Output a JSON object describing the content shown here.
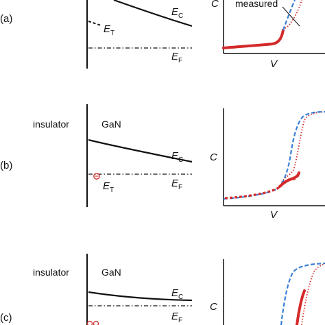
{
  "panels": [
    {
      "letter": "(a)",
      "material_left": "",
      "material_right": "",
      "band": {
        "ec": "E",
        "ec_sub": "C",
        "et": "E",
        "et_sub": "T",
        "ef": "E",
        "ef_sub": "F"
      },
      "cv": {
        "ylabel": "C",
        "xlabel": "V",
        "annotation": "measured"
      }
    },
    {
      "letter": "(b)",
      "material_left": "insulator",
      "material_right": "GaN",
      "band": {
        "ec": "E",
        "ec_sub": "C",
        "et": "E",
        "et_sub": "T",
        "ef": "E",
        "ef_sub": "F"
      },
      "cv": {
        "ylabel": "C",
        "xlabel": "V",
        "annotation": ""
      }
    },
    {
      "letter": "(c)",
      "material_left": "insulator",
      "material_right": "GaN",
      "band": {
        "ec": "E",
        "ec_sub": "C",
        "et": "",
        "et_sub": "",
        "ef": "E",
        "ef_sub": "F"
      },
      "cv": {
        "ylabel": "C",
        "xlabel": "",
        "annotation": ""
      }
    }
  ],
  "colors": {
    "line": "#111111",
    "measured": "#d42a2a",
    "ideal": "#3a7fd5",
    "trap_marker": "#d42a2a"
  }
}
